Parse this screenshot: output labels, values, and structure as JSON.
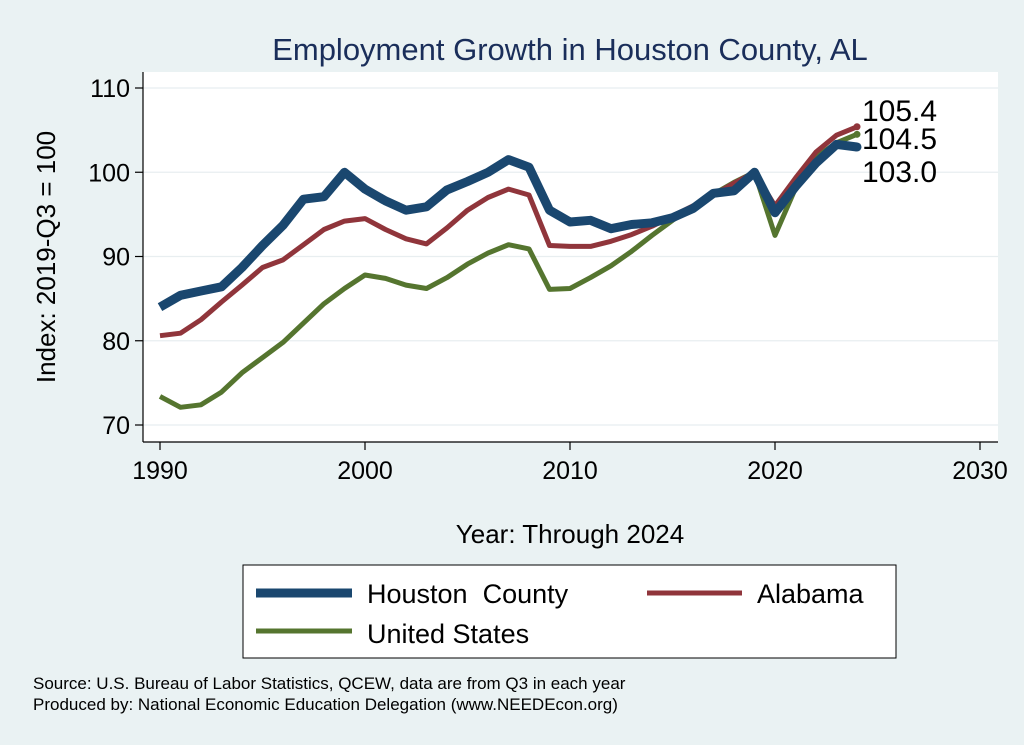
{
  "chart_data": {
    "type": "line",
    "title": "Employment Growth in Houston County, AL",
    "xlabel": "Year: Through 2024",
    "ylabel": "Index: 2019-Q3 = 100",
    "xlim": [
      1990,
      2030
    ],
    "ylim": [
      70,
      110
    ],
    "xticks": [
      1990,
      2000,
      2010,
      2020,
      2030
    ],
    "yticks": [
      70,
      80,
      90,
      100,
      110
    ],
    "grid": true,
    "x": [
      1990,
      1991,
      1992,
      1993,
      1994,
      1995,
      1996,
      1997,
      1998,
      1999,
      2000,
      2001,
      2002,
      2003,
      2004,
      2005,
      2006,
      2007,
      2008,
      2009,
      2010,
      2011,
      2012,
      2013,
      2014,
      2015,
      2016,
      2017,
      2018,
      2019,
      2020,
      2021,
      2022,
      2023,
      2024
    ],
    "series": [
      {
        "name": "Houston  County",
        "color": "#1a476f",
        "values": [
          84.0,
          85.4,
          85.9,
          86.4,
          88.7,
          91.3,
          93.7,
          96.8,
          97.1,
          100.0,
          98.0,
          96.6,
          95.5,
          95.9,
          97.9,
          98.9,
          100.0,
          101.5,
          100.6,
          95.5,
          94.1,
          94.3,
          93.3,
          93.8,
          94.0,
          94.6,
          95.7,
          97.5,
          97.8,
          100.0,
          95.2,
          98.3,
          101.1,
          103.3,
          103.0
        ],
        "end_label": "103.0"
      },
      {
        "name": "Alabama",
        "color": "#90353b",
        "values": [
          80.6,
          80.9,
          82.5,
          84.6,
          86.6,
          88.7,
          89.6,
          91.4,
          93.2,
          94.2,
          94.5,
          93.2,
          92.1,
          91.5,
          93.4,
          95.5,
          97.0,
          98.0,
          97.3,
          91.3,
          91.2,
          91.2,
          91.8,
          92.6,
          93.6,
          94.8,
          96.0,
          97.3,
          98.7,
          100.0,
          96.0,
          99.3,
          102.4,
          104.4,
          105.4
        ],
        "end_label": "105.4"
      },
      {
        "name": "United States",
        "color": "#55752f",
        "values": [
          73.4,
          72.1,
          72.4,
          73.9,
          76.2,
          78.0,
          79.8,
          82.1,
          84.4,
          86.2,
          87.8,
          87.4,
          86.6,
          86.2,
          87.5,
          89.1,
          90.4,
          91.4,
          90.9,
          86.1,
          86.2,
          87.5,
          88.9,
          90.6,
          92.5,
          94.3,
          95.9,
          97.4,
          98.8,
          100.0,
          92.5,
          98.1,
          101.8,
          103.5,
          104.5
        ],
        "end_label": "104.5"
      }
    ]
  },
  "legend": {
    "items": [
      {
        "label": "Houston  County"
      },
      {
        "label": "Alabama"
      },
      {
        "label": "United States"
      }
    ]
  },
  "source": {
    "line1": "Source: U.S. Bureau of Labor Statistics, QCEW, data are from Q3 in each year",
    "line2": "Produced by: National Economic Education Delegation (www.NEEDEcon.org)"
  }
}
